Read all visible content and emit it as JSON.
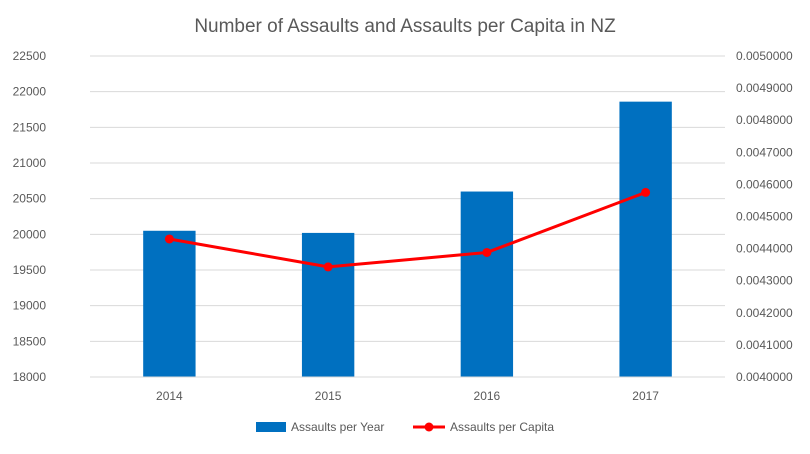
{
  "chart_data": {
    "type": "bar",
    "title": "Number of Assaults and Assaults per Capita in NZ",
    "categories": [
      "2014",
      "2015",
      "2016",
      "2017"
    ],
    "series": [
      {
        "name": "Assaults per Year",
        "type": "bar",
        "axis": "left",
        "color": "#0070C0",
        "values": [
          20050,
          20020,
          20600,
          21860
        ]
      },
      {
        "name": "Assaults per Capita",
        "type": "line",
        "axis": "right",
        "color": "#FF0000",
        "values": [
          0.00443,
          0.004343,
          0.004388,
          0.004575
        ]
      }
    ],
    "ylim": [
      18000,
      22500
    ],
    "y2lim": [
      0.004,
      0.005
    ],
    "yticks": [
      "18000",
      "18500",
      "19000",
      "19500",
      "20000",
      "20500",
      "21000",
      "21500",
      "22000",
      "22500"
    ],
    "y2ticks": [
      "0.0040000",
      "0.0041000",
      "0.0042000",
      "0.0043000",
      "0.0044000",
      "0.0045000",
      "0.0046000",
      "0.0047000",
      "0.0048000",
      "0.0049000",
      "0.0050000"
    ],
    "grid": true,
    "legend_position": "bottom"
  }
}
